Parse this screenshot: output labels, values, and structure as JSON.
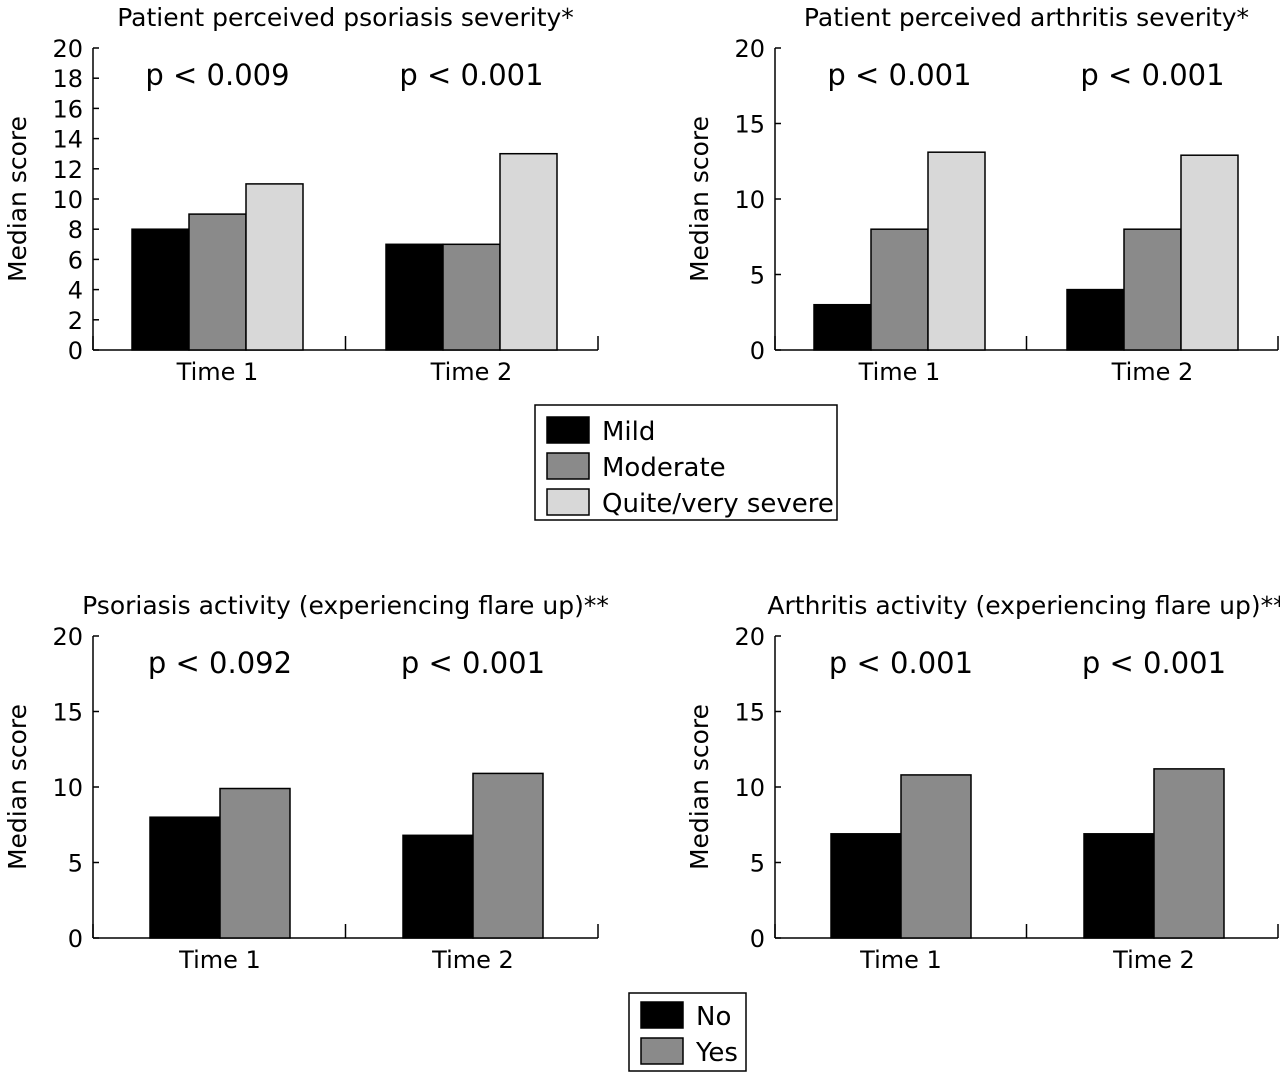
{
  "legends": [
    {
      "entries": [
        {
          "label": "Mild",
          "color": "#000000"
        },
        {
          "label": "Moderate",
          "color": "#8a8a8a"
        },
        {
          "label": "Quite/very severe",
          "color": "#d8d8d8"
        }
      ]
    },
    {
      "entries": [
        {
          "label": "No",
          "color": "#000000"
        },
        {
          "label": "Yes",
          "color": "#8a8a8a"
        }
      ]
    }
  ],
  "chart_data": [
    {
      "type": "bar",
      "title": "Patient perceived psoriasis severity*",
      "xlabel": "",
      "ylabel": "Median score",
      "ylim": [
        0,
        20
      ],
      "yticks": [
        0,
        2,
        4,
        6,
        8,
        10,
        12,
        14,
        16,
        18,
        20
      ],
      "categories": [
        "Time 1",
        "Time 2"
      ],
      "annotations": [
        "p < 0.009",
        "p < 0.001"
      ],
      "series": [
        {
          "name": "Mild",
          "color": "#000000",
          "values": [
            8,
            7
          ]
        },
        {
          "name": "Moderate",
          "color": "#8a8a8a",
          "values": [
            9,
            7
          ]
        },
        {
          "name": "Quite/very severe",
          "color": "#d8d8d8",
          "values": [
            11,
            13
          ]
        }
      ],
      "grid": false
    },
    {
      "type": "bar",
      "title": "Patient perceived arthritis severity*",
      "xlabel": "",
      "ylabel": "Median score",
      "ylim": [
        0,
        20
      ],
      "yticks": [
        0,
        5,
        10,
        15,
        20
      ],
      "categories": [
        "Time 1",
        "Time 2"
      ],
      "annotations": [
        "p < 0.001",
        "p < 0.001"
      ],
      "series": [
        {
          "name": "Mild",
          "color": "#000000",
          "values": [
            3,
            4
          ]
        },
        {
          "name": "Moderate",
          "color": "#8a8a8a",
          "values": [
            8,
            8
          ]
        },
        {
          "name": "Quite/very severe",
          "color": "#d8d8d8",
          "values": [
            13.1,
            12.9
          ]
        }
      ],
      "grid": false
    },
    {
      "type": "bar",
      "title": "Psoriasis activity (experiencing flare up)**",
      "xlabel": "",
      "ylabel": "Median score",
      "ylim": [
        0,
        20
      ],
      "yticks": [
        0,
        5,
        10,
        15,
        20
      ],
      "categories": [
        "Time 1",
        "Time 2"
      ],
      "annotations": [
        "p < 0.092",
        "p < 0.001"
      ],
      "series": [
        {
          "name": "No",
          "color": "#000000",
          "values": [
            8,
            6.8
          ]
        },
        {
          "name": "Yes",
          "color": "#8a8a8a",
          "values": [
            9.9,
            10.9
          ]
        }
      ],
      "grid": false
    },
    {
      "type": "bar",
      "title": "Arthritis activity (experiencing flare up)**",
      "xlabel": "",
      "ylabel": "Median score",
      "ylim": [
        0,
        20
      ],
      "yticks": [
        0,
        5,
        10,
        15,
        20
      ],
      "categories": [
        "Time 1",
        "Time 2"
      ],
      "annotations": [
        "p < 0.001",
        "p < 0.001"
      ],
      "series": [
        {
          "name": "No",
          "color": "#000000",
          "values": [
            6.9,
            6.9
          ]
        },
        {
          "name": "Yes",
          "color": "#8a8a8a",
          "values": [
            10.8,
            11.2
          ]
        }
      ],
      "grid": false
    }
  ]
}
